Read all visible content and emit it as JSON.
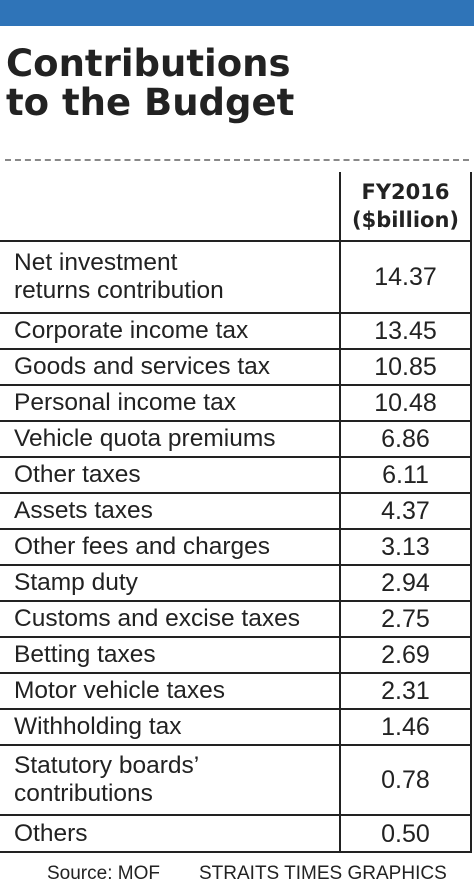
{
  "colors": {
    "accent": "#2f74b8",
    "text": "#222222",
    "rule": "#222222",
    "dash": "#888888"
  },
  "title_lines": [
    "Contributions",
    "to the Budget"
  ],
  "chart_data": {
    "type": "table",
    "title": "Contributions to the Budget",
    "column_header": [
      "FY2016",
      "($billion)"
    ],
    "rows": [
      {
        "label": "Net investment\nreturns contribution",
        "value": "14.37"
      },
      {
        "label": "Corporate income tax",
        "value": "13.45"
      },
      {
        "label": "Goods and services tax",
        "value": "10.85"
      },
      {
        "label": "Personal income tax",
        "value": "10.48"
      },
      {
        "label": "Vehicle quota premiums",
        "value": "6.86"
      },
      {
        "label": "Other taxes",
        "value": "6.11"
      },
      {
        "label": "Assets taxes",
        "value": "4.37"
      },
      {
        "label": "Other fees and charges",
        "value": "3.13"
      },
      {
        "label": "Stamp duty",
        "value": "2.94"
      },
      {
        "label": "Customs and excise taxes",
        "value": "2.75"
      },
      {
        "label": "Betting taxes",
        "value": "2.69"
      },
      {
        "label": "Motor vehicle taxes",
        "value": "2.31"
      },
      {
        "label": "Withholding tax",
        "value": "1.46"
      },
      {
        "label": "Statutory boards’\ncontributions",
        "value": "0.78"
      },
      {
        "label": "Others",
        "value": "0.50"
      }
    ]
  },
  "footer": {
    "source": "Source: MOF",
    "credit": "STRAITS TIMES GRAPHICS"
  }
}
